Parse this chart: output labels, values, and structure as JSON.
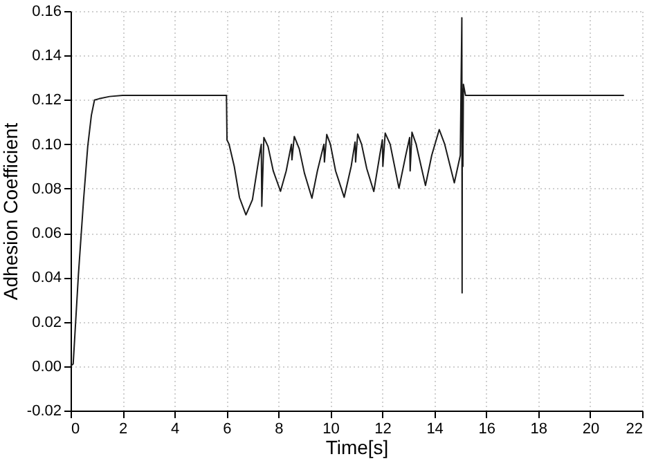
{
  "chart_data": {
    "type": "line",
    "xlabel": "Time[s]",
    "ylabel": "Adhesion Coefficient",
    "x": [
      0,
      0.1,
      0.3,
      0.5,
      0.66,
      0.8,
      0.92,
      1.1,
      1.5,
      2,
      4,
      6.0,
      6.02,
      6.1,
      6.3,
      6.5,
      6.75,
      7.0,
      7.2,
      7.34,
      7.36,
      7.44,
      7.6,
      7.8,
      8.08,
      8.3,
      8.5,
      8.52,
      8.61,
      8.8,
      9.0,
      9.29,
      9.5,
      9.75,
      9.77,
      9.86,
      10.0,
      10.2,
      10.53,
      10.8,
      10.95,
      10.97,
      11.05,
      11.2,
      11.4,
      11.67,
      11.9,
      12.0,
      12.02,
      12.11,
      12.3,
      12.64,
      12.9,
      13.05,
      13.07,
      13.14,
      13.3,
      13.66,
      13.9,
      14.19,
      14.4,
      14.77,
      15.0,
      15.06,
      15.07,
      15.08,
      15.1,
      15.12,
      15.2,
      16,
      18,
      20,
      21.3
    ],
    "series": [
      {
        "color": "#1a1a1a",
        "values": [
          0,
          0.001,
          0.041,
          0.075,
          0.099,
          0.113,
          0.1199,
          0.1205,
          0.1215,
          0.122,
          0.122,
          0.122,
          0.1019,
          0.1,
          0.09,
          0.076,
          0.0682,
          0.075,
          0.09,
          0.1,
          0.072,
          0.103,
          0.099,
          0.088,
          0.0788,
          0.088,
          0.1,
          0.093,
          0.1035,
          0.098,
          0.087,
          0.0757,
          0.088,
          0.1,
          0.092,
          0.1044,
          0.1,
          0.088,
          0.0761,
          0.09,
          0.101,
          0.092,
          0.1046,
          0.1,
          0.089,
          0.0787,
          0.095,
          0.102,
          0.09,
          0.105,
          0.1,
          0.0802,
          0.095,
          0.103,
          0.088,
          0.1054,
          0.1,
          0.0814,
          0.095,
          0.1066,
          0.1,
          0.0826,
          0.095,
          0.157,
          0.033,
          0.125,
          0.09,
          0.127,
          0.122,
          0.122,
          0.122,
          0.122,
          0.122
        ]
      }
    ],
    "xlim": [
      0,
      22
    ],
    "xticks": [
      0,
      2,
      4,
      6,
      8,
      10,
      12,
      14,
      16,
      18,
      20,
      22
    ],
    "ylim": [
      -0.02,
      0.16
    ],
    "yticks": [
      {
        "value": -0.02,
        "label": "-0.02"
      },
      {
        "value": 0,
        "label": "0.00"
      },
      {
        "value": 0.02,
        "label": "0.02"
      },
      {
        "value": 0.04,
        "label": "0.04"
      },
      {
        "value": 0.06,
        "label": "0.06"
      },
      {
        "value": 0.08,
        "label": "0.08"
      },
      {
        "value": 0.1,
        "label": "0.10"
      },
      {
        "value": 0.12,
        "label": "0.12"
      },
      {
        "value": 0.14,
        "label": "0.14"
      },
      {
        "value": 0.16,
        "label": "0.16"
      }
    ],
    "grid": true,
    "marker": "none",
    "line_style": "solid"
  }
}
